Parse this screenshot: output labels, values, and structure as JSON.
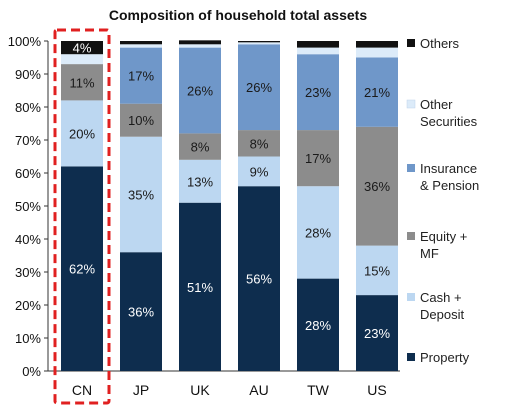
{
  "chart_data": {
    "type": "bar",
    "stacked": true,
    "title": "Composition of household total assets",
    "categories": [
      "CN",
      "JP",
      "UK",
      "AU",
      "TW",
      "US"
    ],
    "highlighted_category": "CN",
    "y_ticks": [
      "0%",
      "10%",
      "20%",
      "30%",
      "40%",
      "50%",
      "60%",
      "70%",
      "80%",
      "90%",
      "100%"
    ],
    "ylim": [
      0,
      100
    ],
    "legend_position": "right",
    "series": [
      {
        "name": "Property",
        "color": "#0e2d4e",
        "values": [
          62,
          36,
          51,
          56,
          28,
          23
        ],
        "labels": [
          "62%",
          "36%",
          "51%",
          "56%",
          "28%",
          "23%"
        ]
      },
      {
        "name": "Cash + Deposit",
        "color": "#bcd7f1",
        "values": [
          20,
          35,
          13,
          9,
          28,
          15
        ],
        "labels": [
          "20%",
          "35%",
          "13%",
          "9%",
          "28%",
          "15%"
        ]
      },
      {
        "name": "Equity + MF",
        "color": "#8c8c8c",
        "values": [
          11,
          10,
          8,
          8,
          17,
          36
        ],
        "labels": [
          "11%",
          "10%",
          "8%",
          "8%",
          "17%",
          "36%"
        ]
      },
      {
        "name": "Insurance & Pension",
        "color": "#6f97c9",
        "values": [
          0,
          17,
          26,
          26,
          23,
          21
        ],
        "labels": [
          "",
          "17%",
          "26%",
          "26%",
          "23%",
          "21%"
        ]
      },
      {
        "name": "Other Securities",
        "color": "#dcebf9",
        "values": [
          3,
          1,
          1,
          0.6,
          2,
          3
        ],
        "labels": [
          "",
          "",
          "",
          "",
          "",
          ""
        ]
      },
      {
        "name": "Others",
        "color": "#111111",
        "values": [
          4,
          1,
          1.2,
          0.4,
          2,
          2
        ],
        "labels": [
          "4%",
          "",
          "",
          "",
          "",
          ""
        ]
      }
    ],
    "legend": [
      {
        "lines": [
          "Others"
        ],
        "color": "#111111"
      },
      {
        "lines": [
          "Other",
          "Securities"
        ],
        "color": "#dcebf9"
      },
      {
        "lines": [
          "Insurance",
          "& Pension"
        ],
        "color": "#6f97c9"
      },
      {
        "lines": [
          "Equity +",
          "MF"
        ],
        "color": "#8c8c8c"
      },
      {
        "lines": [
          "Cash +",
          "Deposit"
        ],
        "color": "#bcd7f1"
      },
      {
        "lines": [
          "Property"
        ],
        "color": "#0e2d4e"
      }
    ],
    "highlight_color": "#e02020"
  }
}
